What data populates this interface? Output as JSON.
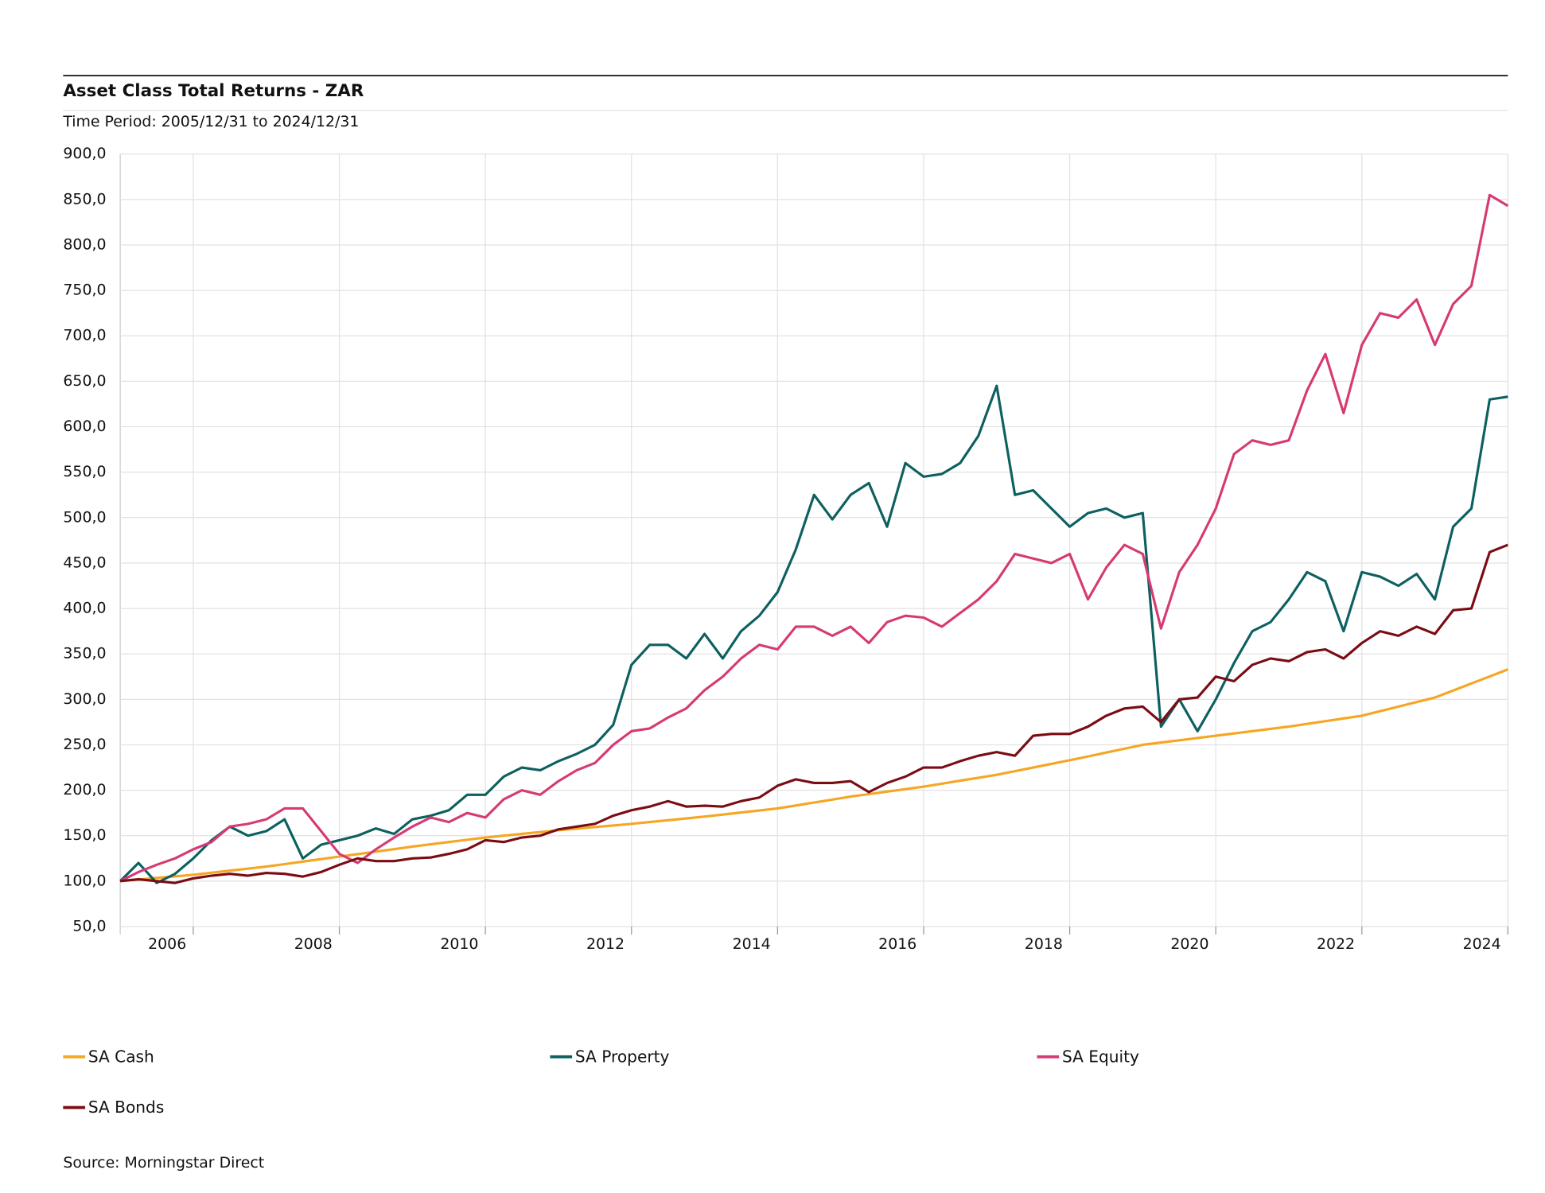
{
  "chart_data": {
    "type": "line",
    "title": "Asset Class Total Returns - ZAR",
    "subtitle": "Time Period: 2005/12/31 to 2024/12/31",
    "source": "Source: Morningstar Direct",
    "x": [
      2005,
      2005.25,
      2005.5,
      2005.75,
      2006,
      2006.25,
      2006.5,
      2006.75,
      2007,
      2007.25,
      2007.5,
      2007.75,
      2008,
      2008.25,
      2008.5,
      2008.75,
      2009,
      2009.25,
      2009.5,
      2009.75,
      2010,
      2010.25,
      2010.5,
      2010.75,
      2011,
      2011.25,
      2011.5,
      2011.75,
      2012,
      2012.25,
      2012.5,
      2012.75,
      2013,
      2013.25,
      2013.5,
      2013.75,
      2014,
      2014.25,
      2014.5,
      2014.75,
      2015,
      2015.25,
      2015.5,
      2015.75,
      2016,
      2016.25,
      2016.5,
      2016.75,
      2017,
      2017.25,
      2017.5,
      2017.75,
      2018,
      2018.25,
      2018.5,
      2018.75,
      2019,
      2019.25,
      2019.5,
      2019.75,
      2020,
      2020.25,
      2020.5,
      2020.75,
      2021,
      2021.25,
      2021.5,
      2021.75,
      2022,
      2022.25,
      2022.5,
      2022.75,
      2023,
      2023.25,
      2023.5,
      2023.75,
      2024
    ],
    "series": [
      {
        "name": "SA Cash",
        "color": "#f5a623",
        "values": [
          100,
          101.7,
          103.5,
          105.2,
          107,
          109.2,
          111.5,
          113.7,
          116,
          118.7,
          121.5,
          124.2,
          127,
          129.7,
          132.5,
          135.2,
          138,
          140.5,
          143,
          145.5,
          148,
          150,
          152,
          154,
          156,
          157.7,
          159.5,
          161.2,
          163,
          165,
          167,
          169,
          171,
          173.2,
          175.5,
          177.7,
          180,
          183.2,
          186.5,
          189.7,
          193,
          195.7,
          198.5,
          201.2,
          204,
          207.2,
          210.5,
          213.7,
          217,
          221,
          225,
          229,
          233,
          237.2,
          241.5,
          245.7,
          250,
          252.5,
          255,
          257.5,
          260,
          262.5,
          265,
          267.5,
          270,
          273,
          276,
          279,
          282,
          287,
          292,
          297,
          302,
          309.7,
          317.5,
          325.2,
          333
        ]
      },
      {
        "name": "SA Property",
        "color": "#0d6060",
        "values": [
          100,
          120,
          98,
          108,
          125,
          145,
          160,
          150,
          155,
          168,
          125,
          140,
          145,
          150,
          158,
          152,
          168,
          172,
          178,
          195,
          195,
          215,
          225,
          222,
          232,
          240,
          250,
          272,
          338,
          360,
          360,
          345,
          372,
          345,
          375,
          392,
          418,
          465,
          525,
          498,
          525,
          538,
          490,
          560,
          545,
          548,
          560,
          590,
          645,
          525,
          530,
          510,
          490,
          505,
          510,
          500,
          505,
          270,
          300,
          265,
          300,
          340,
          375,
          385,
          410,
          440,
          430,
          375,
          440,
          435,
          425,
          438,
          410,
          490,
          510,
          630,
          633
        ]
      },
      {
        "name": "SA Equity",
        "color": "#d63a74",
        "values": [
          100,
          110,
          118,
          125,
          135,
          143,
          160,
          163,
          168,
          180,
          180,
          155,
          130,
          120,
          135,
          148,
          160,
          170,
          165,
          175,
          170,
          190,
          200,
          195,
          210,
          222,
          230,
          250,
          265,
          268,
          280,
          290,
          310,
          325,
          345,
          360,
          355,
          380,
          380,
          370,
          380,
          362,
          385,
          392,
          390,
          380,
          395,
          410,
          430,
          460,
          455,
          450,
          460,
          410,
          445,
          470,
          460,
          378,
          440,
          470,
          510,
          570,
          585,
          580,
          585,
          640,
          680,
          615,
          690,
          725,
          720,
          740,
          690,
          735,
          755,
          855,
          843
        ]
      },
      {
        "name": "SA Bonds",
        "color": "#7a0c14",
        "values": [
          100,
          102,
          100,
          98,
          103,
          106,
          108,
          106,
          109,
          108,
          105,
          110,
          118,
          125,
          122,
          122,
          125,
          126,
          130,
          135,
          145,
          143,
          148,
          150,
          157,
          160,
          163,
          172,
          178,
          182,
          188,
          182,
          183,
          182,
          188,
          192,
          205,
          212,
          208,
          208,
          210,
          198,
          208,
          215,
          225,
          225,
          232,
          238,
          242,
          238,
          260,
          262,
          262,
          270,
          282,
          290,
          292,
          275,
          300,
          302,
          325,
          320,
          338,
          345,
          342,
          352,
          355,
          345,
          362,
          375,
          370,
          380,
          372,
          398,
          400,
          462,
          470
        ]
      }
    ],
    "xlim": [
      2005,
      2024
    ],
    "xticks": [
      2006,
      2008,
      2010,
      2012,
      2014,
      2016,
      2018,
      2020,
      2022,
      2024
    ],
    "ylim": [
      50,
      900
    ],
    "yticks": [
      {
        "value": 50,
        "label": "50,0"
      },
      {
        "value": 100,
        "label": "100,0"
      },
      {
        "value": 150,
        "label": "150,0"
      },
      {
        "value": 200,
        "label": "200,0"
      },
      {
        "value": 250,
        "label": "250,0"
      },
      {
        "value": 300,
        "label": "300,0"
      },
      {
        "value": 350,
        "label": "350,0"
      },
      {
        "value": 400,
        "label": "400,0"
      },
      {
        "value": 450,
        "label": "450,0"
      },
      {
        "value": 500,
        "label": "500,0"
      },
      {
        "value": 550,
        "label": "550,0"
      },
      {
        "value": 600,
        "label": "600,0"
      },
      {
        "value": 650,
        "label": "650,0"
      },
      {
        "value": 700,
        "label": "700,0"
      },
      {
        "value": 750,
        "label": "750,0"
      },
      {
        "value": 800,
        "label": "800,0"
      },
      {
        "value": 850,
        "label": "850,0"
      },
      {
        "value": 900,
        "label": "900,0"
      }
    ],
    "grid": true
  }
}
